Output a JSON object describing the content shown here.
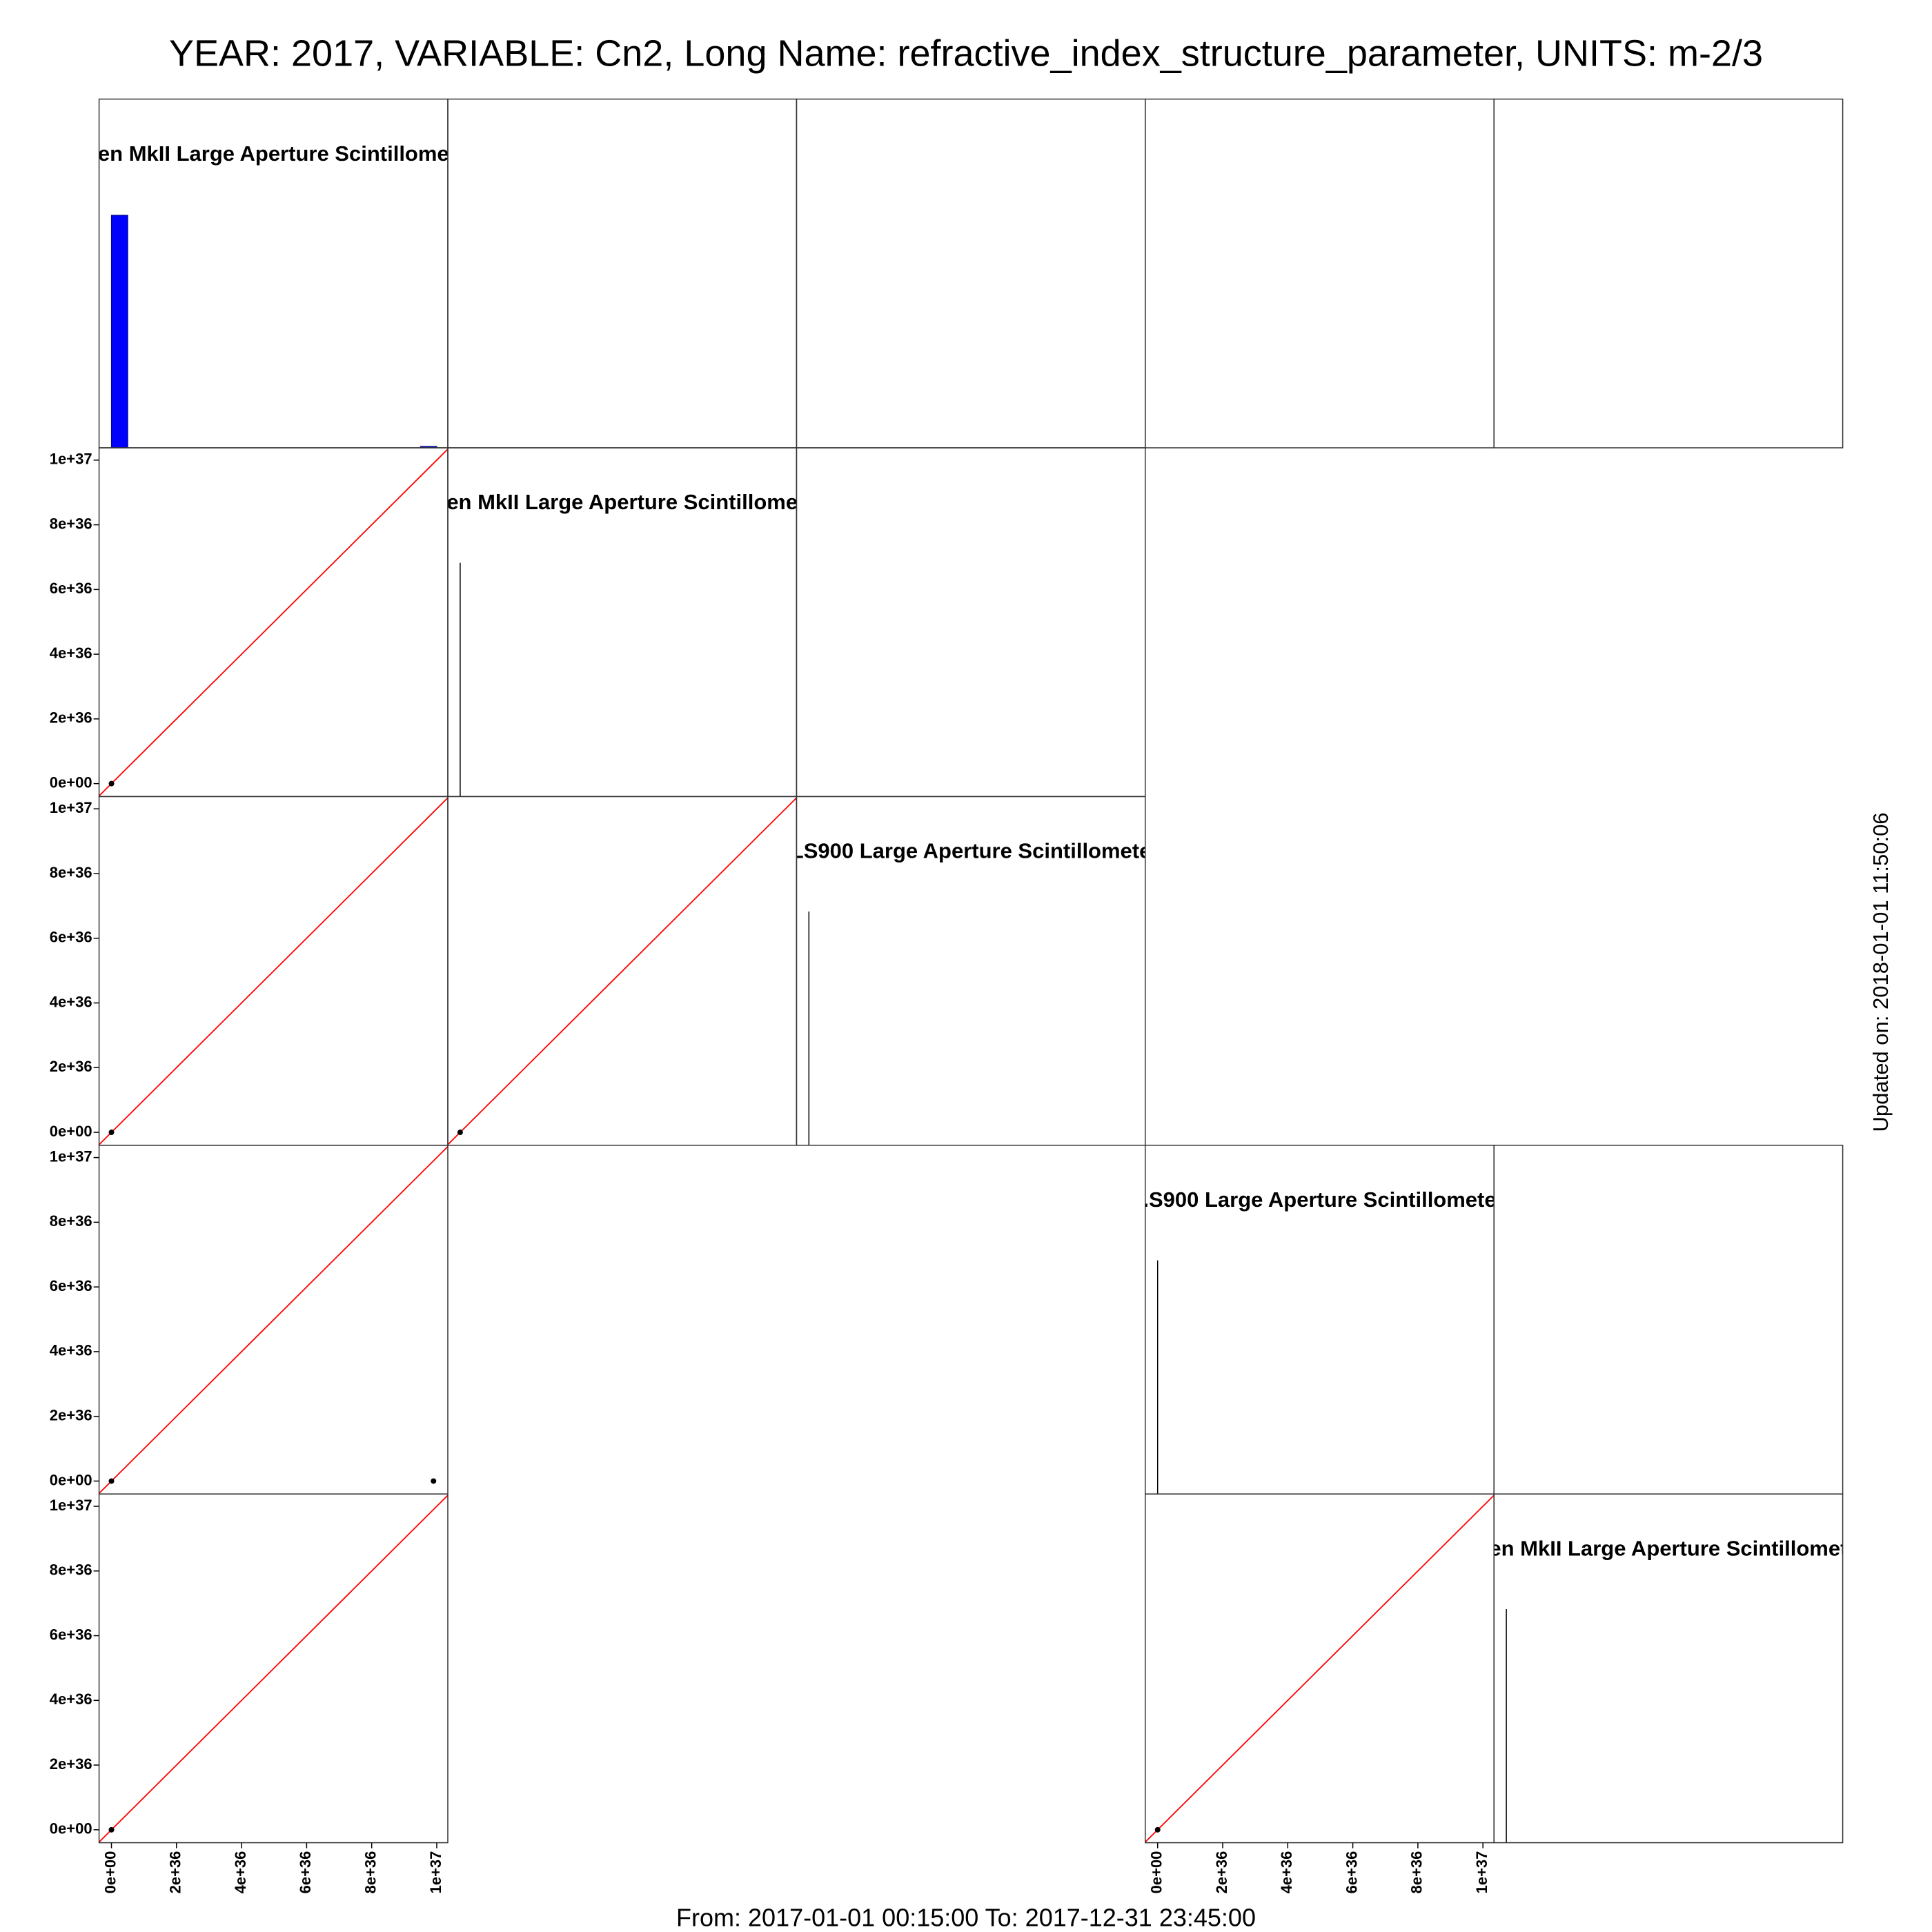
{
  "chart_data": {
    "type": "scatter-matrix",
    "title": "YEAR: 2017, VARIABLE: Cn2, Long Name: refractive_index_structure_parameter, UNITS: m-2/3",
    "xlabel": "From: 2017-01-01 00:15:00 To: 2017-12-31 23:45:00",
    "side_label": "Updated on: 2018-01-01 11:50:06",
    "xlim": [
      -3.8e+35,
      1.034e+37
    ],
    "ylim": [
      -4e+35,
      1.038e+37
    ],
    "xticks": [
      {
        "value": 0,
        "label": "0e+00"
      },
      {
        "value": 2e+36,
        "label": "2e+36"
      },
      {
        "value": 4e+36,
        "label": "4e+36"
      },
      {
        "value": 6e+36,
        "label": "6e+36"
      },
      {
        "value": 8e+36,
        "label": "8e+36"
      },
      {
        "value": 1e+37,
        "label": "1e+37"
      }
    ],
    "yticks": [
      {
        "value": 0,
        "label": "0e+00"
      },
      {
        "value": 2e+36,
        "label": "2e+36"
      },
      {
        "value": 4e+36,
        "label": "4e+36"
      },
      {
        "value": 6e+36,
        "label": "6e+36"
      },
      {
        "value": 8e+36,
        "label": "8e+36"
      },
      {
        "value": 1e+37,
        "label": "1e+37"
      }
    ],
    "point_color": "#000000",
    "line_color": "#ff0000",
    "panels": [
      {
        "type": "histogram",
        "title": "en MkII Large Aperture Scintillome",
        "color": "#0000ff",
        "bins": [
          0,
          5e+35,
          1e+36,
          1.5e+36,
          2e+36,
          2.5e+36,
          3e+36,
          3.5e+36,
          4e+36,
          4.5e+36,
          5e+36,
          5.5e+36,
          6e+36,
          6.5e+36,
          7e+36,
          7.5e+36,
          8e+36,
          8.5e+36,
          9e+36,
          9.5e+36,
          1e+37
        ],
        "values": [
          35000,
          0,
          0,
          0,
          0,
          0,
          0,
          0,
          0,
          0,
          0,
          0,
          0,
          0,
          0,
          0,
          0,
          0,
          0,
          200
        ],
        "ylim": [
          0,
          52500
        ]
      },
      {
        "type": "scatter",
        "x": [
          0
        ],
        "values": [
          0
        ]
      },
      {
        "type": "density",
        "title": "en MkII Large Aperture Scintillome",
        "x": [
          0
        ],
        "values": [
          0.67
        ],
        "ylim": [
          0,
          1
        ]
      },
      {
        "type": "scatter",
        "x": [
          0
        ],
        "values": [
          0
        ]
      },
      {
        "type": "scatter",
        "x": [
          0
        ],
        "values": [
          0
        ]
      },
      {
        "type": "density",
        "title": "LS900 Large Aperture Scintillomete",
        "x": [
          0
        ],
        "values": [
          0.67
        ],
        "ylim": [
          0,
          1
        ]
      },
      {
        "type": "scatter",
        "x": [
          0,
          9.9e+36
        ],
        "values": [
          0,
          0
        ]
      },
      {
        "type": "density",
        "title": ".S900 Large Aperture Scintillomete",
        "x": [
          0
        ],
        "values": [
          0.67
        ],
        "ylim": [
          0,
          1
        ]
      },
      {
        "type": "scatter",
        "x": [
          0
        ],
        "values": [
          0
        ]
      },
      {
        "type": "scatter",
        "x": [
          0
        ],
        "values": [
          0
        ]
      },
      {
        "type": "density",
        "title": "en MkII Large Aperture Scintillomet",
        "x": [
          0
        ],
        "values": [
          0.67
        ],
        "ylim": [
          0,
          1
        ]
      }
    ]
  }
}
